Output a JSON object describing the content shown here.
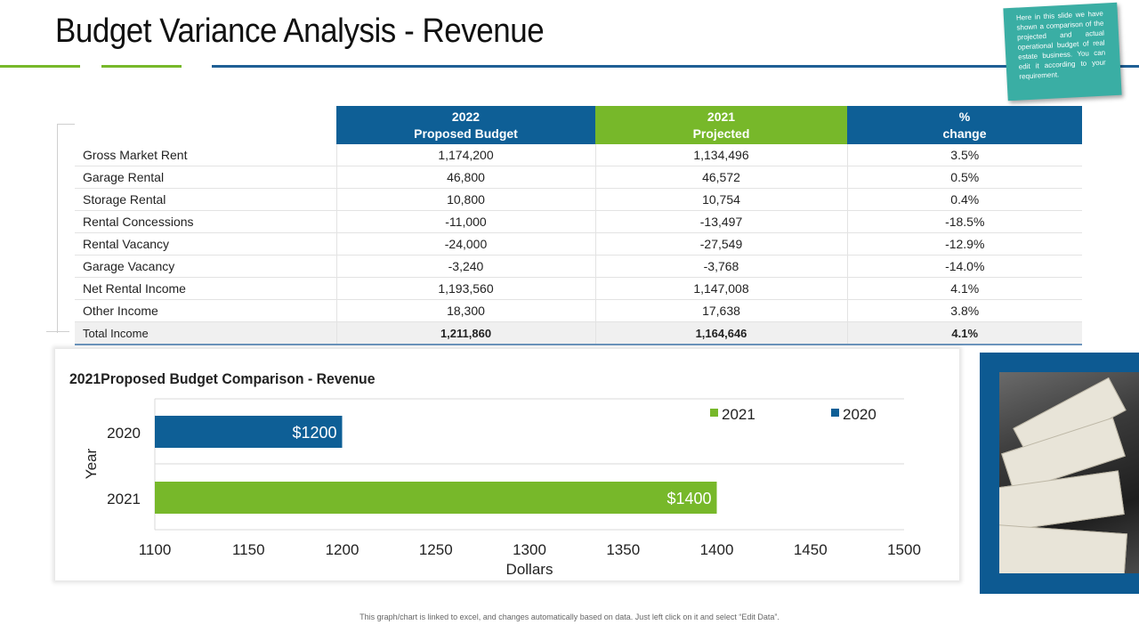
{
  "page": {
    "title": "Budget Variance Analysis - Revenue",
    "note": "Here in this slide we have shown a comparison of the projected and actual operational budget of real estate business. You can edit it according to your requirement.",
    "footer": "This graph/chart is linked to excel, and changes automatically based on data. Just left click on it and select “Edit Data”.",
    "decor": {
      "chevrons": "»»»"
    }
  },
  "colors": {
    "blue": "#0e5f96",
    "green": "#77b82a",
    "navy": "#1f5f95"
  },
  "table": {
    "headers": [
      {
        "line1": "",
        "line2": ""
      },
      {
        "line1": "2022",
        "line2": "Proposed Budget"
      },
      {
        "line1": "2021",
        "line2": "Projected"
      },
      {
        "line1": "%",
        "line2": "change"
      }
    ],
    "rows": [
      [
        "Gross Market Rent",
        "1,174,200",
        "1,134,496",
        "3.5%"
      ],
      [
        "Garage Rental",
        "46,800",
        "46,572",
        "0.5%"
      ],
      [
        "Storage Rental",
        "10,800",
        "10,754",
        "0.4%"
      ],
      [
        "Rental Concessions",
        "-11,000",
        "-13,497",
        "-18.5%"
      ],
      [
        "Rental Vacancy",
        "-24,000",
        "-27,549",
        "-12.9%"
      ],
      [
        "Garage Vacancy",
        "-3,240",
        "-3,768",
        "-14.0%"
      ],
      [
        "Net Rental Income",
        "1,193,560",
        "1,147,008",
        "4.1%"
      ],
      [
        "Other Income",
        "18,300",
        "17,638",
        "3.8%"
      ],
      [
        "Total Income",
        "1,211,860",
        "1,164,646",
        "4.1%"
      ]
    ]
  },
  "chart_data": {
    "type": "bar",
    "orientation": "horizontal",
    "title": "2021Proposed Budget Comparison - Revenue",
    "xlabel": "Dollars",
    "ylabel": "Year",
    "xlim": [
      1100,
      1500
    ],
    "xticks": [
      "1100",
      "1150",
      "1200",
      "1250",
      "1300",
      "1350",
      "1400",
      "1450",
      "1500"
    ],
    "categories": [
      "2020",
      "2021"
    ],
    "bars": [
      {
        "category": "2020",
        "series": "2020",
        "value": 1200,
        "label": "$1200",
        "color": "#0e5f96"
      },
      {
        "category": "2021",
        "series": "2021",
        "value": 1400,
        "label": "$1400",
        "color": "#77b82a"
      }
    ],
    "legend": [
      {
        "name": "2021",
        "color": "#77b82a"
      },
      {
        "name": "2020",
        "color": "#0e5f96"
      }
    ],
    "legend_position": "top-right",
    "grid": true
  }
}
